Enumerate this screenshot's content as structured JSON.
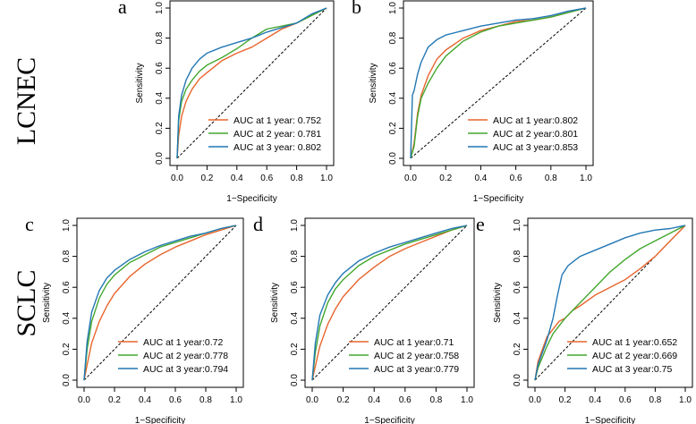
{
  "row_labels": {
    "top": "LCNEC",
    "bottom": "SCLC"
  },
  "colors": {
    "year1": "#E8652D",
    "year2": "#43A72E",
    "year3": "#2277B4",
    "axis": "#000000",
    "diagonal": "#000000"
  },
  "chart_data": [
    {
      "type": "line",
      "panel_label": "a",
      "xlabel": "1−Specificity",
      "ylabel": "Sensitivity",
      "xlim": [
        0,
        1
      ],
      "ylim": [
        0,
        1
      ],
      "xticks": [
        "0.0",
        "0.2",
        "0.4",
        "0.6",
        "0.8",
        "1.0"
      ],
      "yticks": [
        "0.0",
        "0.2",
        "0.4",
        "0.6",
        "0.8",
        "1.0"
      ],
      "legend_position": "bottom-right",
      "series": [
        {
          "name": "AUC at 1 year: 0.752",
          "color": "#E8652D",
          "x": [
            0,
            0.01,
            0.03,
            0.06,
            0.1,
            0.15,
            0.2,
            0.3,
            0.4,
            0.5,
            0.6,
            0.7,
            0.8,
            0.9,
            1
          ],
          "y": [
            0,
            0.15,
            0.28,
            0.38,
            0.46,
            0.53,
            0.57,
            0.65,
            0.7,
            0.74,
            0.8,
            0.86,
            0.9,
            0.95,
            1
          ]
        },
        {
          "name": "AUC at 2 year: 0.781",
          "color": "#43A72E",
          "x": [
            0,
            0.01,
            0.03,
            0.06,
            0.1,
            0.15,
            0.2,
            0.3,
            0.4,
            0.5,
            0.6,
            0.7,
            0.8,
            0.9,
            1
          ],
          "y": [
            0,
            0.25,
            0.38,
            0.46,
            0.52,
            0.58,
            0.62,
            0.67,
            0.73,
            0.8,
            0.86,
            0.88,
            0.9,
            0.95,
            1
          ]
        },
        {
          "name": "AUC at 3 year: 0.802",
          "color": "#2277B4",
          "x": [
            0,
            0.01,
            0.03,
            0.06,
            0.1,
            0.15,
            0.2,
            0.3,
            0.4,
            0.5,
            0.6,
            0.7,
            0.8,
            0.9,
            1
          ],
          "y": [
            0,
            0.28,
            0.42,
            0.52,
            0.6,
            0.66,
            0.7,
            0.74,
            0.77,
            0.8,
            0.84,
            0.87,
            0.9,
            0.96,
            1
          ]
        }
      ]
    },
    {
      "type": "line",
      "panel_label": "b",
      "xlabel": "1−Specificity",
      "ylabel": "Sensitivity",
      "xlim": [
        0,
        1
      ],
      "ylim": [
        0,
        1
      ],
      "xticks": [
        "0.0",
        "0.2",
        "0.4",
        "0.6",
        "0.8",
        "1.0"
      ],
      "yticks": [
        "0.0",
        "0.2",
        "0.4",
        "0.6",
        "0.8",
        "1.0"
      ],
      "legend_position": "bottom-right",
      "series": [
        {
          "name": "AUC at 1 year:0.802",
          "color": "#E8652D",
          "x": [
            0,
            0.02,
            0.04,
            0.06,
            0.1,
            0.15,
            0.2,
            0.3,
            0.4,
            0.5,
            0.6,
            0.7,
            0.8,
            0.9,
            1
          ],
          "y": [
            0,
            0.1,
            0.3,
            0.42,
            0.55,
            0.66,
            0.72,
            0.8,
            0.85,
            0.88,
            0.91,
            0.92,
            0.94,
            0.97,
            1
          ]
        },
        {
          "name": "AUC at 2 year:0.801",
          "color": "#43A72E",
          "x": [
            0,
            0.02,
            0.04,
            0.06,
            0.1,
            0.15,
            0.2,
            0.3,
            0.4,
            0.5,
            0.6,
            0.7,
            0.8,
            0.9,
            1
          ],
          "y": [
            0,
            0.08,
            0.28,
            0.4,
            0.5,
            0.6,
            0.68,
            0.78,
            0.84,
            0.88,
            0.9,
            0.92,
            0.94,
            0.97,
            1
          ]
        },
        {
          "name": "AUC at 3 year:0.853",
          "color": "#2277B4",
          "x": [
            0,
            0.01,
            0.02,
            0.04,
            0.06,
            0.1,
            0.15,
            0.2,
            0.3,
            0.4,
            0.5,
            0.6,
            0.7,
            0.8,
            0.9,
            1
          ],
          "y": [
            0,
            0.42,
            0.45,
            0.56,
            0.64,
            0.74,
            0.79,
            0.82,
            0.85,
            0.88,
            0.9,
            0.92,
            0.93,
            0.95,
            0.98,
            1
          ]
        }
      ]
    },
    {
      "type": "line",
      "panel_label": "c",
      "xlabel": "1−Specificity",
      "ylabel": "Sensitivity",
      "xlim": [
        0,
        1
      ],
      "ylim": [
        0,
        1
      ],
      "xticks": [
        "0.0",
        "0.2",
        "0.4",
        "0.6",
        "0.8",
        "1.0"
      ],
      "yticks": [
        "0.0",
        "0.2",
        "0.4",
        "0.6",
        "0.8",
        "1.0"
      ],
      "legend_position": "bottom-right",
      "series": [
        {
          "name": "AUC at 1 year:0.72",
          "color": "#E8652D",
          "x": [
            0,
            0.02,
            0.05,
            0.1,
            0.15,
            0.2,
            0.3,
            0.4,
            0.5,
            0.6,
            0.7,
            0.8,
            0.9,
            1
          ],
          "y": [
            0,
            0.1,
            0.24,
            0.38,
            0.48,
            0.56,
            0.67,
            0.75,
            0.81,
            0.86,
            0.9,
            0.94,
            0.97,
            1
          ]
        },
        {
          "name": "AUC at 2 year:0.778",
          "color": "#43A72E",
          "x": [
            0,
            0.02,
            0.05,
            0.1,
            0.15,
            0.2,
            0.3,
            0.4,
            0.5,
            0.6,
            0.7,
            0.8,
            0.9,
            1
          ],
          "y": [
            0,
            0.2,
            0.38,
            0.53,
            0.62,
            0.68,
            0.76,
            0.81,
            0.86,
            0.89,
            0.92,
            0.95,
            0.98,
            1
          ]
        },
        {
          "name": "AUC at 3 year:0.794",
          "color": "#2277B4",
          "x": [
            0,
            0.02,
            0.05,
            0.1,
            0.15,
            0.2,
            0.3,
            0.4,
            0.5,
            0.6,
            0.7,
            0.8,
            0.9,
            1
          ],
          "y": [
            0,
            0.25,
            0.44,
            0.58,
            0.66,
            0.71,
            0.78,
            0.83,
            0.87,
            0.9,
            0.93,
            0.95,
            0.98,
            1
          ]
        }
      ]
    },
    {
      "type": "line",
      "panel_label": "d",
      "xlabel": "1−Specificity",
      "ylabel": "Sensitivity",
      "xlim": [
        0,
        1
      ],
      "ylim": [
        0,
        1
      ],
      "xticks": [
        "0.0",
        "0.2",
        "0.4",
        "0.6",
        "0.8",
        "1.0"
      ],
      "yticks": [
        "0.0",
        "0.2",
        "0.4",
        "0.6",
        "0.8",
        "1.0"
      ],
      "legend_position": "bottom-right",
      "series": [
        {
          "name": "AUC at 1 year:0.71",
          "color": "#E8652D",
          "x": [
            0,
            0.02,
            0.05,
            0.1,
            0.15,
            0.2,
            0.3,
            0.4,
            0.5,
            0.6,
            0.7,
            0.8,
            0.9,
            1
          ],
          "y": [
            0,
            0.09,
            0.22,
            0.36,
            0.46,
            0.54,
            0.65,
            0.73,
            0.8,
            0.85,
            0.89,
            0.93,
            0.97,
            1
          ]
        },
        {
          "name": "AUC at 2 year:0.758",
          "color": "#43A72E",
          "x": [
            0,
            0.02,
            0.05,
            0.1,
            0.15,
            0.2,
            0.3,
            0.4,
            0.5,
            0.6,
            0.7,
            0.8,
            0.9,
            1
          ],
          "y": [
            0,
            0.18,
            0.35,
            0.5,
            0.59,
            0.65,
            0.74,
            0.8,
            0.84,
            0.88,
            0.91,
            0.94,
            0.97,
            1
          ]
        },
        {
          "name": "AUC at 3 year:0.779",
          "color": "#2277B4",
          "x": [
            0,
            0.02,
            0.05,
            0.1,
            0.15,
            0.2,
            0.3,
            0.4,
            0.5,
            0.6,
            0.7,
            0.8,
            0.9,
            1
          ],
          "y": [
            0,
            0.24,
            0.42,
            0.55,
            0.63,
            0.69,
            0.77,
            0.82,
            0.86,
            0.89,
            0.92,
            0.95,
            0.98,
            1
          ]
        }
      ]
    },
    {
      "type": "line",
      "panel_label": "e",
      "xlabel": "1−Specificity",
      "ylabel": "Sensitivity",
      "xlim": [
        0,
        1
      ],
      "ylim": [
        0,
        1
      ],
      "xticks": [
        "0.0",
        "0.2",
        "0.4",
        "0.6",
        "0.8",
        "1.0"
      ],
      "yticks": [
        "0.0",
        "0.2",
        "0.4",
        "0.6",
        "0.8",
        "1.0"
      ],
      "legend_position": "bottom-right",
      "series": [
        {
          "name": "AUC at 1 year:0.652",
          "color": "#E8652D",
          "x": [
            0,
            0.02,
            0.05,
            0.08,
            0.12,
            0.16,
            0.2,
            0.25,
            0.3,
            0.4,
            0.5,
            0.6,
            0.7,
            0.8,
            0.9,
            1
          ],
          "y": [
            0,
            0.12,
            0.2,
            0.28,
            0.33,
            0.38,
            0.4,
            0.45,
            0.48,
            0.55,
            0.6,
            0.65,
            0.72,
            0.8,
            0.9,
            1
          ]
        },
        {
          "name": "AUC at 2 year:0.669",
          "color": "#43A72E",
          "x": [
            0,
            0.02,
            0.05,
            0.08,
            0.12,
            0.16,
            0.2,
            0.25,
            0.3,
            0.4,
            0.5,
            0.6,
            0.7,
            0.8,
            0.9,
            1
          ],
          "y": [
            0,
            0.08,
            0.15,
            0.22,
            0.3,
            0.35,
            0.4,
            0.45,
            0.5,
            0.6,
            0.7,
            0.78,
            0.85,
            0.9,
            0.95,
            1
          ]
        },
        {
          "name": "AUC at 3 year:0.75",
          "color": "#2277B4",
          "x": [
            0,
            0.02,
            0.05,
            0.08,
            0.12,
            0.15,
            0.18,
            0.22,
            0.3,
            0.4,
            0.5,
            0.6,
            0.7,
            0.8,
            0.9,
            1
          ],
          "y": [
            0,
            0.1,
            0.18,
            0.26,
            0.4,
            0.55,
            0.68,
            0.74,
            0.8,
            0.84,
            0.88,
            0.92,
            0.95,
            0.97,
            0.98,
            1
          ]
        }
      ]
    }
  ]
}
